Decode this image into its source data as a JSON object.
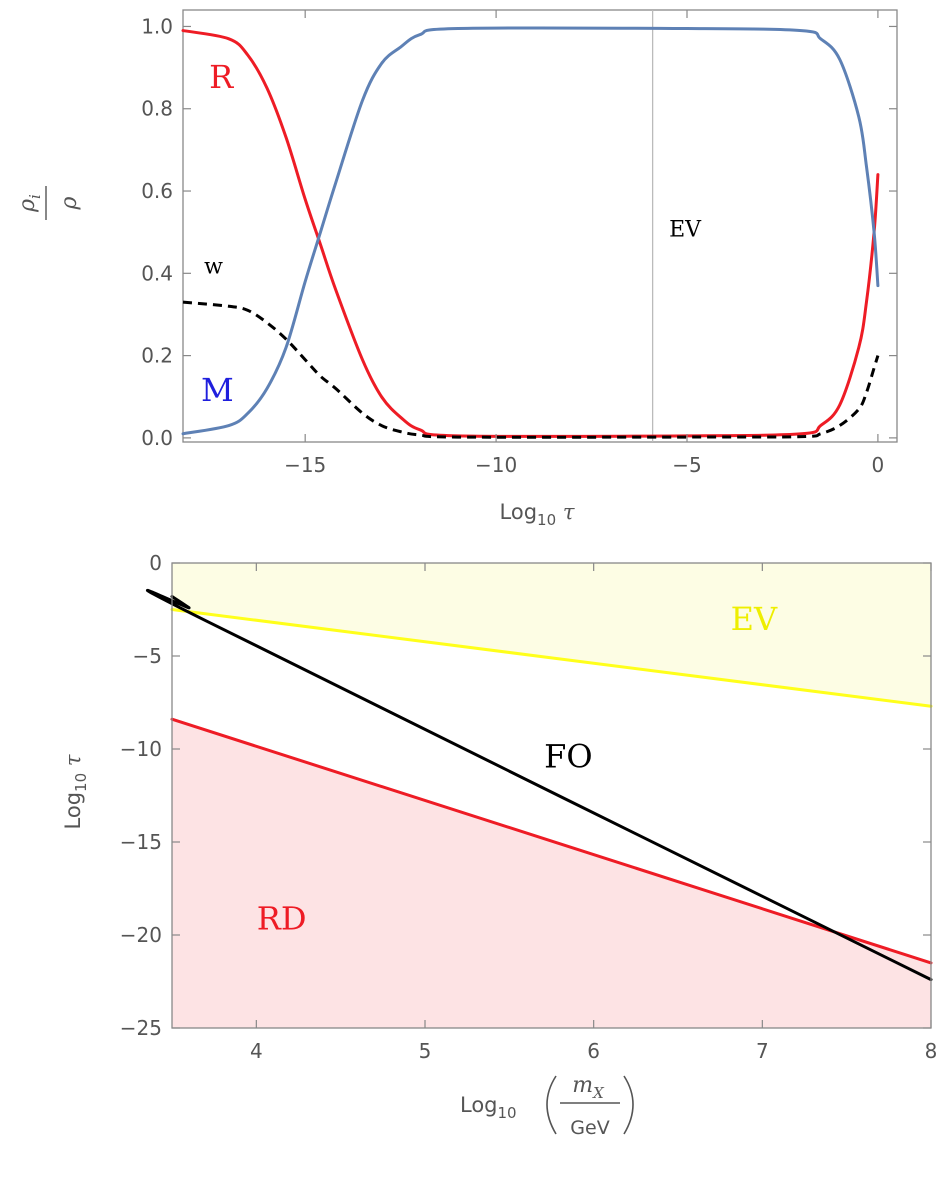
{
  "chart_data": [
    {
      "type": "line",
      "title": "",
      "xlabel": {
        "base": "Log",
        "sub": "10",
        "var": "τ"
      },
      "ylabel": {
        "num": "ρ",
        "num_sub": "i",
        "den": "ρ"
      },
      "xlim": [
        -18.2,
        0.5
      ],
      "ylim": [
        -0.01,
        1.04
      ],
      "xticks": [
        -15,
        -10,
        -5,
        0
      ],
      "xtick_labels": [
        "−15",
        "−10",
        "−5",
        "0"
      ],
      "yticks": [
        0.0,
        0.2,
        0.4,
        0.6,
        0.8,
        1.0
      ],
      "ytick_labels": [
        "0.0",
        "0.2",
        "0.4",
        "0.6",
        "0.8",
        "1.0"
      ],
      "grid": false,
      "series": [
        {
          "name": "R",
          "color": "#ee1c25",
          "style": "solid",
          "x": [
            -18.2,
            -17,
            -16.5,
            -16,
            -15.5,
            -15,
            -14.6,
            -14.2,
            -13.5,
            -13,
            -12.5,
            -12,
            -11,
            -5,
            -2,
            -1.5,
            -1,
            -0.5,
            -0.3,
            -0.1,
            0
          ],
          "y": [
            0.99,
            0.97,
            0.93,
            0.85,
            0.73,
            0.58,
            0.47,
            0.36,
            0.19,
            0.1,
            0.05,
            0.02,
            0.005,
            0.005,
            0.01,
            0.03,
            0.08,
            0.22,
            0.33,
            0.5,
            0.64
          ]
        },
        {
          "name": "M",
          "color": "#5e81b5",
          "style": "solid",
          "x": [
            -18.2,
            -17,
            -16.5,
            -16,
            -15.5,
            -15,
            -14.6,
            -14.2,
            -13.5,
            -13,
            -12.5,
            -12,
            -11,
            -5,
            -2,
            -1.5,
            -1,
            -0.5,
            -0.3,
            -0.1,
            0
          ],
          "y": [
            0.01,
            0.03,
            0.06,
            0.12,
            0.22,
            0.38,
            0.5,
            0.62,
            0.82,
            0.91,
            0.95,
            0.98,
            0.995,
            0.995,
            0.99,
            0.97,
            0.92,
            0.78,
            0.66,
            0.5,
            0.37
          ]
        },
        {
          "name": "w",
          "color": "#000000",
          "style": "dashed",
          "x": [
            -18.2,
            -17,
            -16.5,
            -16,
            -15.5,
            -15,
            -14.6,
            -14.2,
            -13.5,
            -13,
            -12.5,
            -12,
            -11,
            -5,
            -2,
            -1.5,
            -1,
            -0.5,
            -0.3,
            -0.1,
            0
          ],
          "y": [
            0.33,
            0.32,
            0.31,
            0.28,
            0.24,
            0.19,
            0.15,
            0.12,
            0.06,
            0.03,
            0.015,
            0.007,
            0.002,
            0.002,
            0.003,
            0.01,
            0.03,
            0.07,
            0.11,
            0.17,
            0.2
          ]
        }
      ],
      "vline": {
        "x": -5.9,
        "label": "EV",
        "color": "#bbbbbb"
      },
      "annotations": [
        {
          "text": "R",
          "x": -17.2,
          "y": 0.85,
          "color": "#ee1c25"
        },
        {
          "text": "M",
          "x": -17.3,
          "y": 0.09,
          "color": "#1f1fdd"
        },
        {
          "text": "w",
          "x": -17.4,
          "y": 0.4,
          "color": "#000000"
        },
        {
          "text": "EV",
          "x": -5.05,
          "y": 0.49,
          "color": "#000000"
        }
      ]
    },
    {
      "type": "line",
      "title": "",
      "xlabel": {
        "base": "Log",
        "sub": "10",
        "num": "m",
        "num_sub": "X",
        "den": "GeV"
      },
      "ylabel": {
        "base": "Log",
        "sub": "10",
        "var": "τ"
      },
      "xlim": [
        3.5,
        8
      ],
      "ylim": [
        -25,
        0
      ],
      "xticks": [
        4,
        5,
        6,
        7,
        8
      ],
      "xtick_labels": [
        "4",
        "5",
        "6",
        "7",
        "8"
      ],
      "yticks": [
        0,
        -5,
        -10,
        -15,
        -20,
        -25
      ],
      "ytick_labels": [
        "0",
        "−5",
        "−10",
        "−15",
        "−20",
        "−25"
      ],
      "grid": false,
      "series": [
        {
          "name": "EV",
          "color": "#ffff1a",
          "style": "solid",
          "x": [
            3.5,
            8
          ],
          "y": [
            -2.5,
            -7.7
          ]
        },
        {
          "name": "RD",
          "color": "#ee1c25",
          "style": "solid",
          "x": [
            3.5,
            8
          ],
          "y": [
            -8.4,
            -21.5
          ]
        },
        {
          "name": "FO",
          "color": "#000000",
          "style": "solid",
          "x": [
            3.5,
            3.6,
            3.7,
            8
          ],
          "y": [
            -1.8,
            -2.4,
            -3.1,
            -22.4
          ]
        }
      ],
      "regions": [
        {
          "name": "EV",
          "color": "#fdfde4",
          "bound": "EV",
          "side": "above"
        },
        {
          "name": "RD",
          "color": "#fde3e4",
          "bound": "RD",
          "side": "below"
        }
      ],
      "annotations": [
        {
          "text": "EV",
          "x": 6.95,
          "y": -3.6,
          "color": "#eeee00"
        },
        {
          "text": "FO",
          "x": 5.85,
          "y": -11.0,
          "color": "#000000"
        },
        {
          "text": "RD",
          "x": 4.15,
          "y": -19.7,
          "color": "#ee1c25"
        }
      ]
    }
  ]
}
